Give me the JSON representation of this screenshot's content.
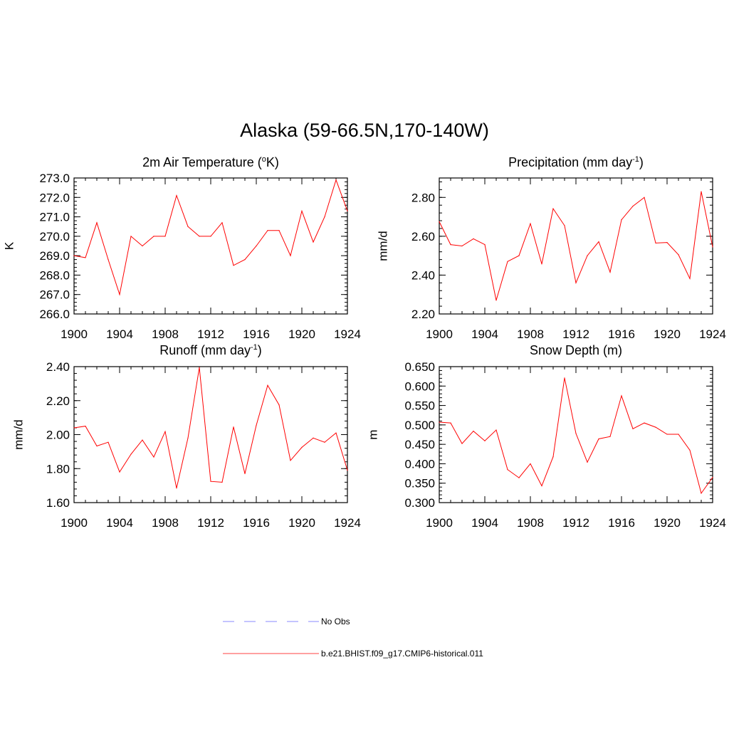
{
  "title": "Alaska (59-66.5N,170-140W)",
  "colors": {
    "model": "#ff0000",
    "obs": "#a0a0ff",
    "axis": "#000000"
  },
  "legend": {
    "obs_label": "No Obs",
    "model_label": "b.e21.BHIST.f09_g17.CMIP6-historical.011"
  },
  "chart_data": [
    {
      "type": "line",
      "title_pre": "2m Air Temperature (",
      "title_sup": "o",
      "title_post": "K)",
      "ylabel": "K",
      "xlim": [
        1900,
        1924
      ],
      "ylim": [
        266.0,
        273.0
      ],
      "xticks": [
        "1900",
        "1904",
        "1908",
        "1912",
        "1916",
        "1920",
        "1924"
      ],
      "yticks": [
        "266.0",
        "267.0",
        "268.0",
        "269.0",
        "270.0",
        "271.0",
        "272.0",
        "273.0"
      ],
      "x": [
        1900,
        1901,
        1902,
        1903,
        1904,
        1905,
        1906,
        1907,
        1908,
        1909,
        1910,
        1911,
        1912,
        1913,
        1914,
        1915,
        1916,
        1917,
        1918,
        1919,
        1920,
        1921,
        1922,
        1923,
        1924
      ],
      "values": [
        269.0,
        268.9,
        270.7,
        268.8,
        267.0,
        270.0,
        269.5,
        270.0,
        270.0,
        272.1,
        270.5,
        270.0,
        270.0,
        270.7,
        268.5,
        268.8,
        269.5,
        270.3,
        270.3,
        269.0,
        271.3,
        269.7,
        271.0,
        272.9,
        271.3
      ]
    },
    {
      "type": "line",
      "title_pre": "Precipitation (mm day",
      "title_sup": "-1",
      "title_post": ")",
      "ylabel": "mm/d",
      "xlim": [
        1900,
        1924
      ],
      "ylim": [
        2.2,
        2.9
      ],
      "xticks": [
        "1900",
        "1904",
        "1908",
        "1912",
        "1916",
        "1920",
        "1924"
      ],
      "yticks": [
        "2.20",
        "2.40",
        "2.60",
        "2.80"
      ],
      "x": [
        1900,
        1901,
        1902,
        1903,
        1904,
        1905,
        1906,
        1907,
        1908,
        1909,
        1910,
        1911,
        1912,
        1913,
        1914,
        1915,
        1916,
        1917,
        1918,
        1919,
        1920,
        1921,
        1922,
        1923,
        1924
      ],
      "values": [
        2.675,
        2.557,
        2.55,
        2.587,
        2.557,
        2.27,
        2.47,
        2.5,
        2.665,
        2.457,
        2.742,
        2.655,
        2.36,
        2.5,
        2.572,
        2.415,
        2.685,
        2.755,
        2.8,
        2.565,
        2.568,
        2.505,
        2.382,
        2.83,
        2.545
      ]
    },
    {
      "type": "line",
      "title_pre": "Runoff (mm day",
      "title_sup": "-1",
      "title_post": ")",
      "ylabel": "mm/d",
      "xlim": [
        1900,
        1924
      ],
      "ylim": [
        1.6,
        2.4
      ],
      "xticks": [
        "1900",
        "1904",
        "1908",
        "1912",
        "1916",
        "1920",
        "1924"
      ],
      "yticks": [
        "1.60",
        "1.80",
        "2.00",
        "2.20",
        "2.40"
      ],
      "x": [
        1900,
        1901,
        1902,
        1903,
        1904,
        1905,
        1906,
        1907,
        1908,
        1909,
        1910,
        1911,
        1912,
        1913,
        1914,
        1915,
        1916,
        1917,
        1918,
        1919,
        1920,
        1921,
        1922,
        1923,
        1924
      ],
      "values": [
        2.04,
        2.05,
        1.933,
        1.955,
        1.78,
        1.885,
        1.968,
        1.868,
        2.018,
        1.685,
        1.98,
        2.395,
        1.725,
        1.72,
        2.045,
        1.77,
        2.055,
        2.29,
        2.175,
        1.848,
        1.925,
        1.98,
        1.955,
        2.01,
        1.79
      ]
    },
    {
      "type": "line",
      "title_pre": "Snow Depth (m)",
      "title_sup": "",
      "title_post": "",
      "ylabel": "m",
      "xlim": [
        1900,
        1924
      ],
      "ylim": [
        0.3,
        0.65
      ],
      "xticks": [
        "1900",
        "1904",
        "1908",
        "1912",
        "1916",
        "1920",
        "1924"
      ],
      "yticks": [
        "0.300",
        "0.350",
        "0.400",
        "0.450",
        "0.500",
        "0.550",
        "0.600",
        "0.650"
      ],
      "x": [
        1900,
        1901,
        1902,
        1903,
        1904,
        1905,
        1906,
        1907,
        1908,
        1909,
        1910,
        1911,
        1912,
        1913,
        1914,
        1915,
        1916,
        1917,
        1918,
        1919,
        1920,
        1921,
        1922,
        1923,
        1924
      ],
      "values": [
        0.507,
        0.505,
        0.452,
        0.484,
        0.459,
        0.487,
        0.385,
        0.364,
        0.4,
        0.343,
        0.418,
        0.621,
        0.478,
        0.404,
        0.464,
        0.47,
        0.575,
        0.49,
        0.505,
        0.494,
        0.476,
        0.476,
        0.435,
        0.324,
        0.365
      ]
    }
  ]
}
